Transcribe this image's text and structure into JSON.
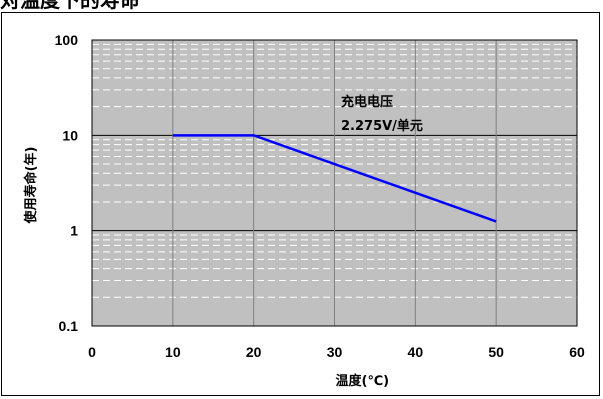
{
  "heading": "对温度下的寿命",
  "chart_data": {
    "type": "line",
    "xlabel": "温度(℃)",
    "ylabel": "使用寿命(年)",
    "x_ticks": [
      "0",
      "10",
      "20",
      "30",
      "40",
      "50",
      "60"
    ],
    "y_ticks": [
      "0.1",
      "1",
      "10",
      "100"
    ],
    "xlim": [
      0,
      60
    ],
    "ylim": [
      0.1,
      100
    ],
    "y_scale": "log",
    "grid": true,
    "plot_background": "#c0c0c0",
    "line_color": "#0000ff",
    "series": [
      {
        "x": [
          10,
          20,
          50
        ],
        "y": [
          10,
          10,
          1.25
        ]
      }
    ],
    "annotation": [
      "充电电压",
      "2.275V/单元"
    ]
  }
}
